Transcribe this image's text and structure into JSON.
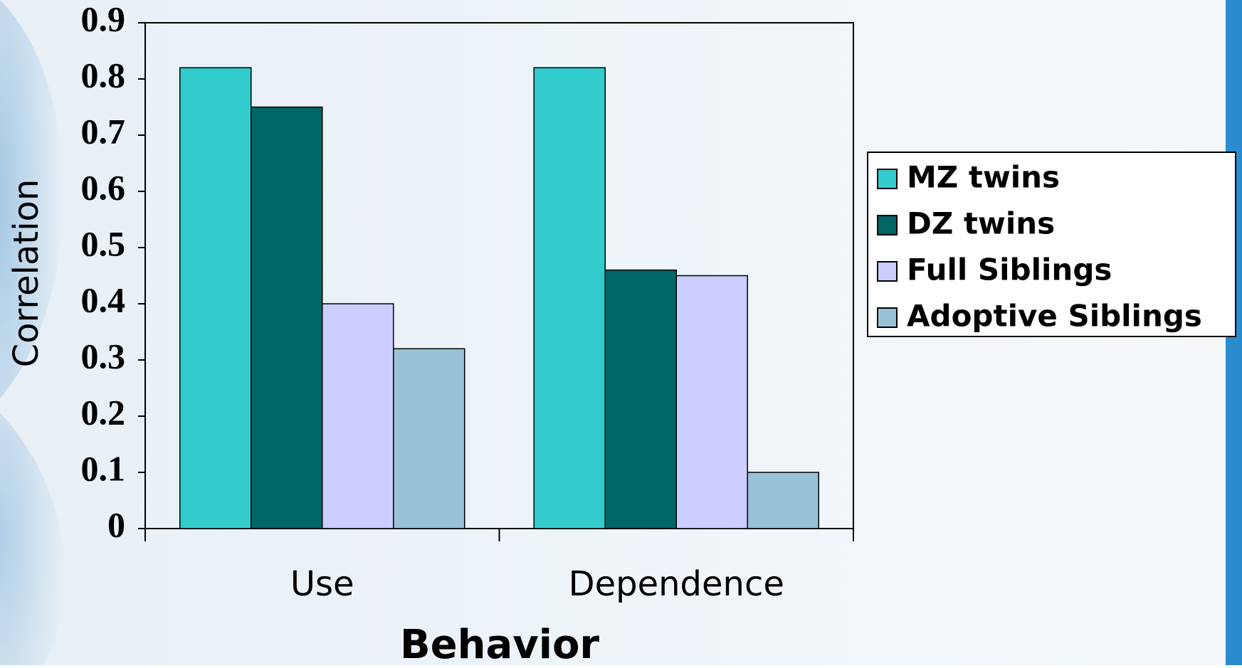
{
  "chart_data": {
    "type": "bar",
    "categories": [
      "Use",
      "Dependence"
    ],
    "series": [
      {
        "name": "MZ twins",
        "color": "#33cccc",
        "values": [
          0.82,
          0.82
        ]
      },
      {
        "name": "DZ twins",
        "color": "#006666",
        "values": [
          0.75,
          0.46
        ]
      },
      {
        "name": "Full Siblings",
        "color": "#ccccff",
        "values": [
          0.4,
          0.45
        ]
      },
      {
        "name": "Adoptive Siblings",
        "color": "#99c2d6",
        "values": [
          0.32,
          0.1
        ]
      }
    ],
    "x_label": "Behavior",
    "y_label": "Correlation",
    "ylim": [
      0,
      0.9
    ],
    "yticks": [
      0,
      0.1,
      0.2,
      0.3,
      0.4,
      0.5,
      0.6,
      0.7,
      0.8,
      0.9
    ],
    "legend": "right"
  }
}
